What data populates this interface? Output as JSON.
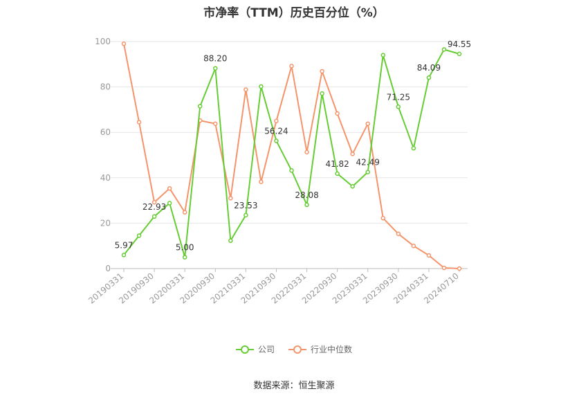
{
  "title": "市净率（TTM）历史百分位（%）",
  "source": "数据来源：恒生聚源",
  "colors": {
    "company": "#66cc33",
    "industry": "#f5946a",
    "grid": "#e6e6e6",
    "axis": "#bbbbbb"
  },
  "chart_data": {
    "type": "line",
    "ylim": [
      0,
      100
    ],
    "yticks": [
      0,
      20,
      40,
      60,
      80,
      100
    ],
    "grid": true,
    "legend_position": "bottom",
    "x": [
      "20190331",
      "20190630",
      "20190930",
      "20191231",
      "20200331",
      "20200630",
      "20200930",
      "20201231",
      "20210331",
      "20210630",
      "20210930",
      "20211231",
      "20220331",
      "20220630",
      "20220930",
      "20221231",
      "20230331",
      "20230630",
      "20230930",
      "20231231",
      "20240331",
      "20240630",
      "20240710"
    ],
    "xtick_labels": [
      "20190331",
      "20190930",
      "20200331",
      "20200930",
      "20210331",
      "20210930",
      "20220331",
      "20220930",
      "20230331",
      "20230930",
      "20240331",
      "20240710"
    ],
    "series": [
      {
        "name": "公司",
        "values": [
          5.97,
          14.5,
          22.93,
          28.8,
          5.0,
          71.5,
          88.2,
          12.3,
          23.53,
          80.2,
          56.24,
          43.2,
          28.08,
          77.1,
          41.82,
          36.2,
          42.49,
          94.0,
          71.25,
          53.0,
          84.09,
          96.5,
          94.55
        ],
        "labels": {
          "0": "5.97",
          "2": "22.93",
          "4": "5.00",
          "6": "88.20",
          "8": "23.53",
          "10": "56.24",
          "12": "28.08",
          "14": "41.82",
          "16": "42.49",
          "18": "71.25",
          "20": "84.09",
          "22": "94.55"
        }
      },
      {
        "name": "行业中位数",
        "values": [
          99.0,
          64.5,
          29.2,
          35.3,
          24.8,
          65.2,
          63.8,
          31.0,
          78.8,
          38.2,
          65.0,
          89.2,
          51.3,
          86.9,
          68.3,
          50.5,
          63.8,
          22.2,
          15.3,
          10.0,
          5.8,
          0.3,
          0.0
        ]
      }
    ]
  }
}
